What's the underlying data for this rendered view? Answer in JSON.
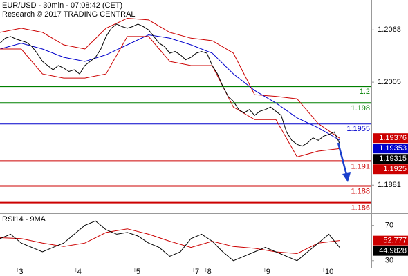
{
  "header": {
    "title": "EUR/USD - 30min - 07:08:42 (CET)",
    "subtitle": "Research © 2017 TRADING CENTRAL"
  },
  "chart_data": [
    {
      "type": "line",
      "xlim": [
        0,
        70
      ],
      "ylim": [
        1.1848,
        1.2104
      ],
      "yticks": [
        1.2068,
        1.2005,
        1.1881
      ],
      "levels": [
        {
          "value": 1.2,
          "color": "#008000"
        },
        {
          "value": 1.198,
          "color": "#008000"
        },
        {
          "value": 1.1955,
          "color": "#0000cc"
        },
        {
          "value": 1.191,
          "color": "#cc0000"
        },
        {
          "value": 1.188,
          "color": "#cc0000"
        },
        {
          "value": 1.186,
          "color": "#cc0000"
        }
      ],
      "series": [
        {
          "color": "#cc0000",
          "x": [
            0,
            4,
            8,
            12,
            16,
            20,
            24,
            28,
            32,
            36,
            40,
            44,
            48,
            52,
            56,
            60,
            64
          ],
          "values": [
            1.2065,
            1.207,
            1.2065,
            1.205,
            1.2045,
            1.207,
            1.2082,
            1.208,
            1.2065,
            1.2058,
            1.2055,
            1.204,
            1.199,
            1.1988,
            1.1985,
            1.1955,
            1.19376
          ]
        },
        {
          "color": "#0000cc",
          "x": [
            0,
            4,
            8,
            12,
            16,
            20,
            24,
            28,
            32,
            36,
            40,
            44,
            48,
            52,
            56,
            60,
            64
          ],
          "values": [
            1.2045,
            1.2052,
            1.2045,
            1.2035,
            1.203,
            1.2038,
            1.205,
            1.2062,
            1.2058,
            1.205,
            1.204,
            1.2015,
            1.1995,
            1.198,
            1.1962,
            1.195,
            1.19353
          ]
        },
        {
          "color": "#cc0000",
          "x": [
            0,
            4,
            8,
            12,
            16,
            20,
            24,
            28,
            32,
            36,
            40,
            44,
            48,
            52,
            56,
            60,
            64
          ],
          "values": [
            1.2045,
            1.2045,
            1.2015,
            1.201,
            1.201,
            1.2015,
            1.206,
            1.206,
            1.203,
            1.2025,
            1.2025,
            1.1975,
            1.196,
            1.196,
            1.1915,
            1.1922,
            1.1925
          ]
        },
        {
          "color": "#000000",
          "x": [
            0,
            1,
            2,
            3,
            4,
            5,
            6,
            7,
            8,
            9,
            10,
            11,
            12,
            13,
            14,
            15,
            16,
            17,
            18,
            19,
            20,
            21,
            22,
            23,
            24,
            25,
            26,
            27,
            28,
            29,
            30,
            31,
            32,
            33,
            34,
            35,
            36,
            37,
            38,
            39,
            40,
            41,
            42,
            43,
            44,
            45,
            46,
            47,
            48,
            49,
            50,
            51,
            52,
            53,
            54,
            55,
            56,
            57,
            58,
            59,
            60,
            61,
            62,
            63,
            64
          ],
          "values": [
            1.2052,
            1.2058,
            1.206,
            1.2057,
            1.2055,
            1.2053,
            1.2048,
            1.204,
            1.203,
            1.2025,
            1.202,
            1.2025,
            1.2022,
            1.2018,
            1.202,
            1.2015,
            1.2025,
            1.203,
            1.2035,
            1.2045,
            1.206,
            1.207,
            1.2075,
            1.2072,
            1.207,
            1.2072,
            1.2075,
            1.2072,
            1.2068,
            1.206,
            1.2052,
            1.2048,
            1.204,
            1.2042,
            1.2038,
            1.2032,
            1.2035,
            1.204,
            1.2042,
            1.204,
            1.2025,
            1.2015,
            1.2,
            1.1988,
            1.1982,
            1.1972,
            1.1968,
            1.1972,
            1.1965,
            1.197,
            1.1972,
            1.1975,
            1.197,
            1.1965,
            1.1945,
            1.1935,
            1.193,
            1.1928,
            1.1932,
            1.1938,
            1.1935,
            1.194,
            1.1942,
            1.1945,
            1.19315
          ]
        }
      ]
    },
    {
      "type": "line",
      "title": "RSI14 - 9MA",
      "xlim": [
        0,
        70
      ],
      "ylim": [
        22,
        83
      ],
      "yticks": [
        70,
        30
      ],
      "xticks": [
        {
          "value": 3.3,
          "label": "3"
        },
        {
          "value": 14.3,
          "label": "4"
        },
        {
          "value": 25.4,
          "label": "5"
        },
        {
          "value": 36.5,
          "label": "7"
        },
        {
          "value": 38.8,
          "label": "8"
        },
        {
          "value": 49.9,
          "label": "9"
        },
        {
          "value": 61,
          "label": "10"
        }
      ],
      "series": [
        {
          "color": "#cc0000",
          "x": [
            0,
            4,
            8,
            12,
            16,
            20,
            24,
            28,
            32,
            36,
            40,
            44,
            48,
            52,
            56,
            60,
            64
          ],
          "values": [
            56,
            55,
            50,
            46,
            50,
            62,
            66,
            60,
            52,
            45,
            52,
            46,
            44,
            40,
            38,
            50,
            52.777
          ]
        },
        {
          "color": "#000000",
          "x": [
            0,
            2,
            4,
            6,
            8,
            10,
            12,
            14,
            16,
            18,
            20,
            22,
            24,
            26,
            28,
            30,
            32,
            34,
            36,
            38,
            40,
            42,
            44,
            46,
            48,
            50,
            52,
            54,
            56,
            58,
            60,
            62,
            64
          ],
          "values": [
            55,
            60,
            50,
            45,
            40,
            45,
            50,
            60,
            70,
            75,
            65,
            60,
            62,
            58,
            50,
            45,
            35,
            40,
            55,
            60,
            52,
            40,
            30,
            35,
            40,
            45,
            40,
            35,
            30,
            40,
            50,
            60,
            44.9828
          ]
        }
      ]
    }
  ]
}
